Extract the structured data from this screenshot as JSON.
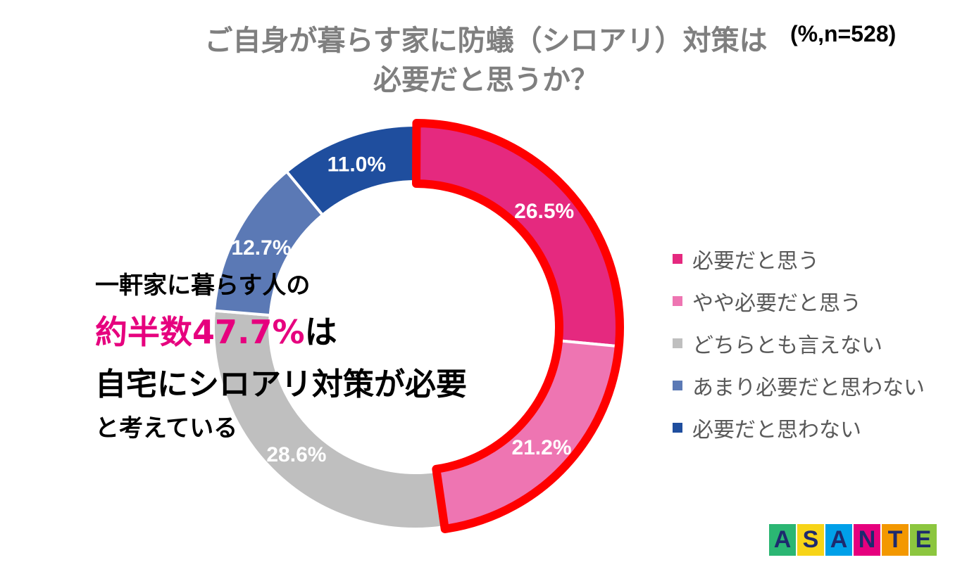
{
  "title": {
    "line1": "ご自身が暮らす家に防蟻（シロアリ）対策は",
    "line2": "必要だと思うか？"
  },
  "note": "(%,n=528)",
  "callout": {
    "line1": "一軒家に暮らす人の",
    "line2_highlight": "約半数47.7%",
    "line2_suffix": "は",
    "line3": "自宅にシロアリ対策が必要",
    "line4": "と考えている"
  },
  "logo": {
    "letters": [
      "A",
      "S",
      "A",
      "N",
      "T",
      "E"
    ],
    "colors": [
      "#2bb673",
      "#f7d417",
      "#00a0e9",
      "#e6007e",
      "#f39800",
      "#8cc63f"
    ]
  },
  "chart_data": {
    "type": "donut",
    "title": "ご自身が暮らす家に防蟻（シロアリ）対策は必要だと思うか？",
    "unit": "%",
    "n": 528,
    "categories": [
      "必要だと思う",
      "やや必要だと思う",
      "どちらとも言えない",
      "あまり必要だと思わない",
      "必要だと思わない"
    ],
    "values": [
      26.5,
      21.2,
      28.6,
      12.7,
      11.0
    ],
    "labels": [
      "26.5%",
      "21.2%",
      "28.6%",
      "12.7%",
      "11.0%"
    ],
    "colors": [
      "#e5297f",
      "#ee75b2",
      "#bfbfbf",
      "#5b79b5",
      "#1f4e9e"
    ],
    "highlight_categories": [
      "必要だと思う",
      "やや必要だと思う"
    ],
    "highlight_color": "#ff0000",
    "legend_position": "right"
  }
}
